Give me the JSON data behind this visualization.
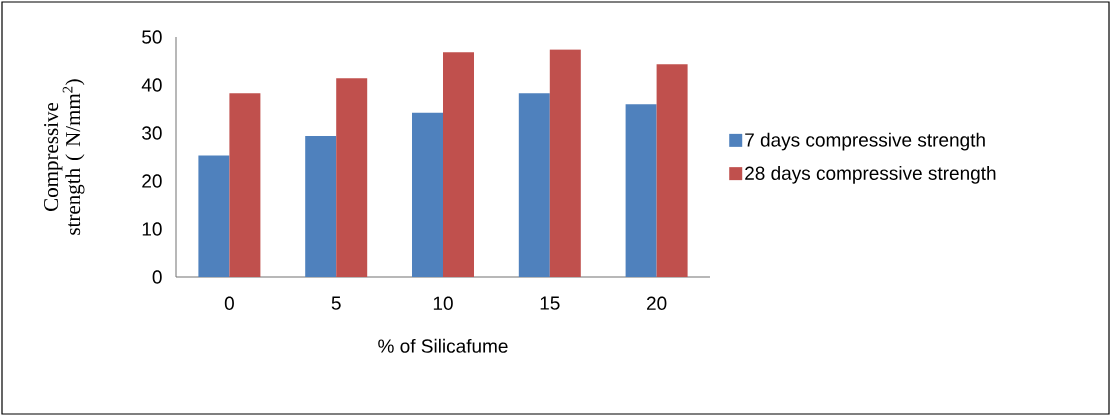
{
  "chart_data": {
    "type": "bar",
    "xlabel": "% of Silicafume",
    "ylabel": "Compressive strength ( N/mm$^{2}$)",
    "categories": [
      "0",
      "5",
      "10",
      "15",
      "20"
    ],
    "series": [
      {
        "name": "7 days compressive strength",
        "color": "#4f81bd",
        "values": [
          25.3,
          29.4,
          34.2,
          38.3,
          36.0
        ]
      },
      {
        "name": "28 days compressive strength",
        "color": "#c0504d",
        "values": [
          38.3,
          41.4,
          46.8,
          47.4,
          44.3
        ]
      }
    ],
    "ylim": [
      0,
      50
    ],
    "yticks": [
      0,
      10,
      20,
      30,
      40,
      50
    ],
    "grid": false,
    "legend": "right"
  }
}
